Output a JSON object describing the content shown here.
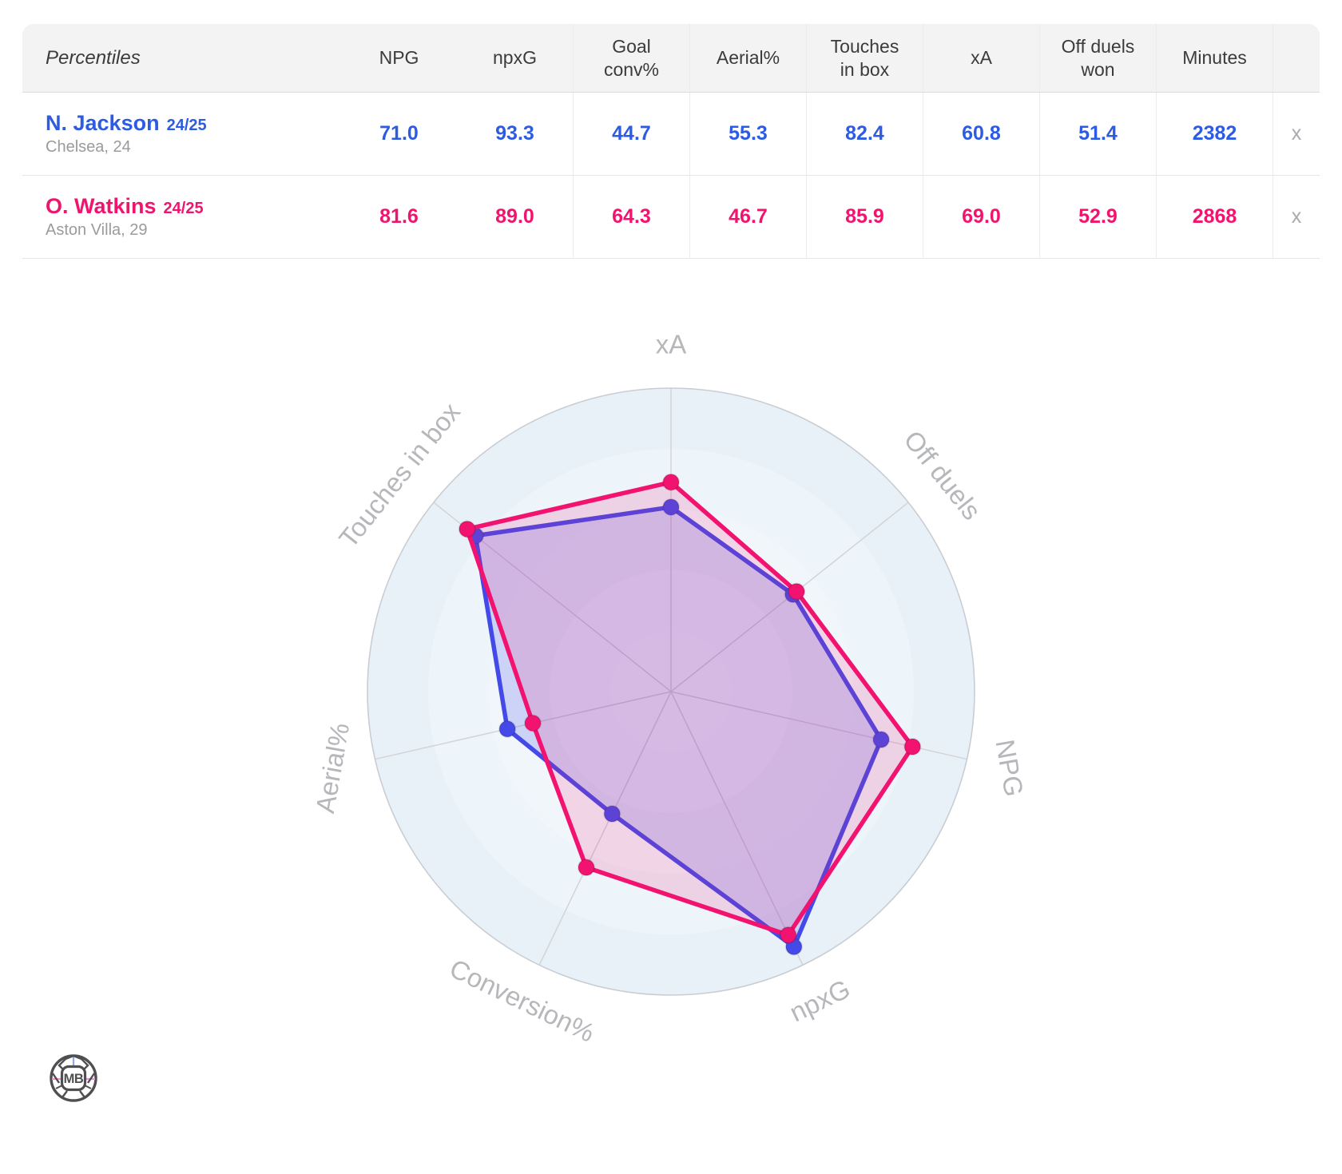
{
  "table": {
    "title": "Percentiles",
    "columns": [
      "NPG",
      "npxG",
      "Goal\nconv%",
      "Aerial%",
      "Touches\nin box",
      "xA",
      "Off duels\nwon",
      "Minutes"
    ],
    "rows": [
      {
        "name": "N. Jackson",
        "season": "24/25",
        "subtitle": "Chelsea, 24",
        "color": "#2d5be2",
        "values": [
          "71.0",
          "93.3",
          "44.7",
          "55.3",
          "82.4",
          "60.8",
          "51.4",
          "2382"
        ],
        "close_label": "x"
      },
      {
        "name": "O. Watkins",
        "season": "24/25",
        "subtitle": "Aston Villa, 29",
        "color": "#f1146e",
        "values": [
          "81.6",
          "89.0",
          "64.3",
          "46.7",
          "85.9",
          "69.0",
          "52.9",
          "2868"
        ],
        "close_label": "x"
      }
    ]
  },
  "chart_data": {
    "type": "radar",
    "axes": [
      "xA",
      "Off duels",
      "NPG",
      "npxG",
      "Conversion%",
      "Aerial%",
      "Touches in box"
    ],
    "range": [
      0,
      100
    ],
    "grid": {
      "rings": 5,
      "shape": "circle",
      "spokes": true
    },
    "legend_position": "none",
    "series": [
      {
        "name": "N. Jackson 24/25",
        "color": "#434ae8",
        "fill_opacity": 0.2,
        "values": [
          60.8,
          51.4,
          71.0,
          93.3,
          44.7,
          55.3,
          82.4
        ]
      },
      {
        "name": "O. Watkins 24/25",
        "color": "#f2126f",
        "fill_opacity": 0.15,
        "values": [
          69.0,
          52.9,
          81.6,
          89.0,
          64.3,
          46.7,
          85.9
        ]
      }
    ]
  },
  "logo": {
    "text": "MB"
  }
}
